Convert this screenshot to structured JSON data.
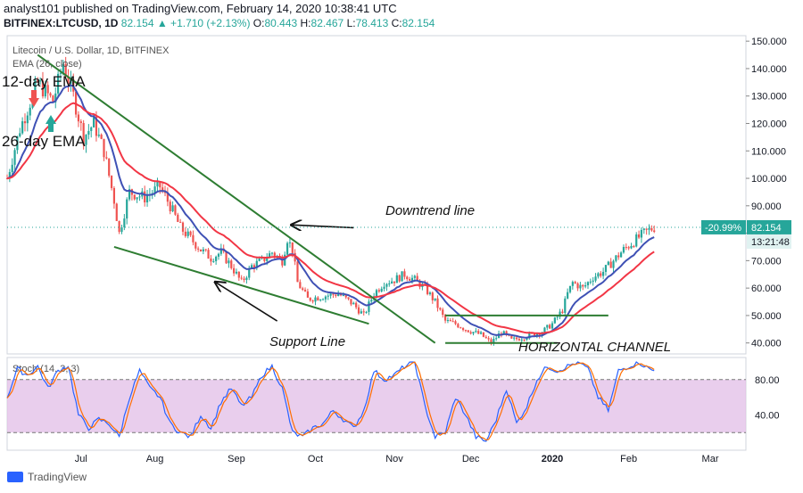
{
  "header": {
    "publish_line": "analyst101 published on TradingView.com, February 14, 2020 10:38:41 UTC",
    "symbol": "BITFINEX:LTCUSD, 1D",
    "last": "82.154",
    "change": "▲ +1.710 (+2.13%)",
    "o_label": "O:",
    "o": "80.443",
    "h_label": "H:",
    "h": "82.467",
    "l_label": "L:",
    "l": "78.413",
    "c_label": "C:",
    "c": "82.154"
  },
  "footer": {
    "brand": "TradingView"
  },
  "colors": {
    "up": "#26a69a",
    "down": "#ef5350",
    "ema_fast": "#3f51b5",
    "ema_slow": "#f23645",
    "trend": "#2e7d32",
    "stoch_k": "#2962ff",
    "stoch_d": "#ff6d00",
    "stoch_band": "#e1bee7"
  },
  "chart_data": [
    {
      "type": "candlestick",
      "title": "Litecoin / U.S. Dollar, 1D, BITFINEX",
      "legend": [
        "EMA (26, close)"
      ],
      "xlabels": [
        "Jul",
        "Aug",
        "Sep",
        "Oct",
        "Nov",
        "Dec",
        "2020",
        "Feb",
        "Mar"
      ],
      "yticks": [
        40,
        50,
        60,
        70,
        80,
        90,
        100,
        110,
        120,
        130,
        140,
        150
      ],
      "ylim": [
        36,
        152
      ],
      "last_price_label": "82.154",
      "change_label": "-20.99%",
      "countdown_label": "13:21:48",
      "price_path": [
        [
          0,
          100
        ],
        [
          5,
          118
        ],
        [
          12,
          135
        ],
        [
          18,
          128
        ],
        [
          22,
          142
        ],
        [
          26,
          130
        ],
        [
          30,
          115
        ],
        [
          34,
          120
        ],
        [
          38,
          110
        ],
        [
          42,
          92
        ],
        [
          44,
          80
        ],
        [
          48,
          95
        ],
        [
          54,
          93
        ],
        [
          60,
          97
        ],
        [
          64,
          90
        ],
        [
          68,
          82
        ],
        [
          72,
          78
        ],
        [
          76,
          74
        ],
        [
          80,
          71
        ],
        [
          84,
          73
        ],
        [
          88,
          68
        ],
        [
          92,
          62
        ],
        [
          96,
          68
        ],
        [
          100,
          70
        ],
        [
          104,
          73
        ],
        [
          108,
          70
        ],
        [
          110,
          78
        ],
        [
          112,
          74
        ],
        [
          114,
          62
        ],
        [
          118,
          56
        ],
        [
          124,
          57
        ],
        [
          130,
          58
        ],
        [
          136,
          54
        ],
        [
          140,
          50
        ],
        [
          144,
          58
        ],
        [
          148,
          62
        ],
        [
          152,
          63
        ],
        [
          156,
          65
        ],
        [
          160,
          63
        ],
        [
          164,
          60
        ],
        [
          168,
          55
        ],
        [
          172,
          48
        ],
        [
          176,
          47
        ],
        [
          180,
          45
        ],
        [
          186,
          43
        ],
        [
          190,
          40
        ],
        [
          194,
          44
        ],
        [
          198,
          41
        ],
        [
          202,
          42
        ],
        [
          206,
          43
        ],
        [
          210,
          44
        ],
        [
          214,
          47
        ],
        [
          218,
          52
        ],
        [
          220,
          58
        ],
        [
          222,
          62
        ],
        [
          226,
          60
        ],
        [
          230,
          64
        ],
        [
          234,
          66
        ],
        [
          238,
          70
        ],
        [
          242,
          74
        ],
        [
          246,
          77
        ],
        [
          250,
          80
        ],
        [
          254,
          82.154
        ]
      ],
      "ema_fast_label": "12-day EMA",
      "ema_slow_label": "26-day EMA",
      "annotations": [
        {
          "text": "Downtrend line"
        },
        {
          "text": "Support Line"
        },
        {
          "text": "HORIZONTAL CHANNEL"
        }
      ],
      "lines": {
        "downtrend": [
          [
            12,
            145
          ],
          [
            168,
            40
          ]
        ],
        "support": [
          [
            42,
            75
          ],
          [
            142,
            47
          ]
        ],
        "channel_top": [
          [
            172,
            50
          ],
          [
            236,
            50
          ]
        ],
        "channel_bottom": [
          [
            172,
            40
          ],
          [
            216,
            40
          ]
        ]
      },
      "arrows": [
        {
          "from": [
            136,
            82
          ],
          "to": [
            112,
            83
          ]
        },
        {
          "from": [
            106,
            48
          ],
          "to": [
            82,
            62
          ]
        }
      ]
    },
    {
      "type": "line",
      "title": "Stoch (14, 3, 3)",
      "yticks": [
        40,
        80
      ],
      "band": [
        20,
        80
      ],
      "ylim": [
        0,
        105
      ],
      "k_path": [
        [
          0,
          60
        ],
        [
          4,
          92
        ],
        [
          8,
          85
        ],
        [
          12,
          95
        ],
        [
          16,
          70
        ],
        [
          20,
          90
        ],
        [
          24,
          96
        ],
        [
          28,
          40
        ],
        [
          32,
          25
        ],
        [
          36,
          35
        ],
        [
          40,
          30
        ],
        [
          44,
          15
        ],
        [
          48,
          60
        ],
        [
          52,
          90
        ],
        [
          56,
          70
        ],
        [
          60,
          60
        ],
        [
          64,
          30
        ],
        [
          68,
          20
        ],
        [
          72,
          15
        ],
        [
          76,
          40
        ],
        [
          80,
          25
        ],
        [
          84,
          55
        ],
        [
          88,
          70
        ],
        [
          92,
          50
        ],
        [
          96,
          60
        ],
        [
          100,
          85
        ],
        [
          104,
          95
        ],
        [
          108,
          70
        ],
        [
          112,
          20
        ],
        [
          116,
          15
        ],
        [
          120,
          25
        ],
        [
          124,
          30
        ],
        [
          128,
          45
        ],
        [
          132,
          35
        ],
        [
          136,
          25
        ],
        [
          140,
          45
        ],
        [
          144,
          90
        ],
        [
          148,
          80
        ],
        [
          152,
          85
        ],
        [
          156,
          95
        ],
        [
          160,
          100
        ],
        [
          164,
          50
        ],
        [
          168,
          15
        ],
        [
          172,
          20
        ],
        [
          176,
          60
        ],
        [
          180,
          40
        ],
        [
          184,
          15
        ],
        [
          188,
          10
        ],
        [
          192,
          35
        ],
        [
          196,
          70
        ],
        [
          200,
          30
        ],
        [
          204,
          50
        ],
        [
          208,
          80
        ],
        [
          212,
          95
        ],
        [
          216,
          90
        ],
        [
          220,
          95
        ],
        [
          224,
          100
        ],
        [
          228,
          92
        ],
        [
          232,
          60
        ],
        [
          236,
          45
        ],
        [
          240,
          90
        ],
        [
          244,
          95
        ],
        [
          248,
          100
        ],
        [
          252,
          92
        ],
        [
          254,
          90
        ]
      ]
    }
  ]
}
